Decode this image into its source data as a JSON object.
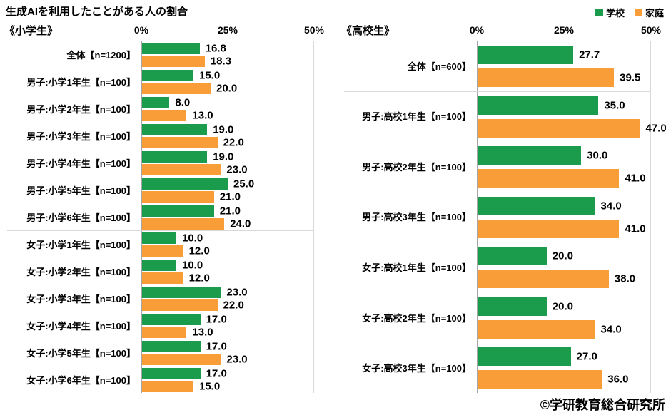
{
  "title": "生成AIを利用したことがある人の割合",
  "footer": "©学研教育総合研究所",
  "colors": {
    "school": "#1B9C4D",
    "home": "#F99D38",
    "separator": "#D9D9D9",
    "axis_line": "#A6A6A6",
    "text": "#000000"
  },
  "legend": [
    {
      "label": "学校",
      "color": "#1B9C4D"
    },
    {
      "label": "家庭",
      "color": "#F99D38"
    }
  ],
  "chart_data": [
    {
      "type": "bar",
      "orientation": "horizontal",
      "section_label": "《小学生》",
      "axis_ticks": [
        "0%",
        "25%",
        "50%"
      ],
      "xlim": [
        0,
        50
      ],
      "grid": false,
      "legend_position": "top-right",
      "value_label_format": "one-decimal",
      "categories": [
        "全体【n=1200】",
        "男子:小学1年生【n=100】",
        "男子:小学2年生【n=100】",
        "男子:小学3年生【n=100】",
        "男子:小学4年生【n=100】",
        "男子:小学5年生【n=100】",
        "男子:小学6年生【n=100】",
        "女子:小学1年生【n=100】",
        "女子:小学2年生【n=100】",
        "女子:小学3年生【n=100】",
        "女子:小学4年生【n=100】",
        "女子:小学5年生【n=100】",
        "女子:小学6年生【n=100】"
      ],
      "series": [
        {
          "name": "学校",
          "values": [
            16.8,
            15.0,
            8.0,
            19.0,
            19.0,
            25.0,
            21.0,
            10.0,
            10.0,
            23.0,
            17.0,
            17.0,
            17.0
          ]
        },
        {
          "name": "家庭",
          "values": [
            18.3,
            20.0,
            13.0,
            22.0,
            23.0,
            21.0,
            24.0,
            12.0,
            12.0,
            22.0,
            13.0,
            23.0,
            15.0
          ]
        }
      ],
      "separators_after": [
        0,
        6
      ]
    },
    {
      "type": "bar",
      "orientation": "horizontal",
      "section_label": "《高校生》",
      "axis_ticks": [
        "0%",
        "25%",
        "50%"
      ],
      "xlim": [
        0,
        50
      ],
      "grid": false,
      "legend_position": "top-right",
      "value_label_format": "one-decimal",
      "categories": [
        "全体【n=600】",
        "男子:高校1年生【n=100】",
        "男子:高校2年生【n=100】",
        "男子:高校3年生【n=100】",
        "女子:高校1年生【n=100】",
        "女子:高校2年生【n=100】",
        "女子:高校3年生【n=100】"
      ],
      "series": [
        {
          "name": "学校",
          "values": [
            27.7,
            35.0,
            30.0,
            34.0,
            20.0,
            20.0,
            27.0
          ]
        },
        {
          "name": "家庭",
          "values": [
            39.5,
            47.0,
            41.0,
            41.0,
            38.0,
            34.0,
            36.0
          ]
        }
      ],
      "separators_after": [
        0,
        3
      ]
    }
  ]
}
